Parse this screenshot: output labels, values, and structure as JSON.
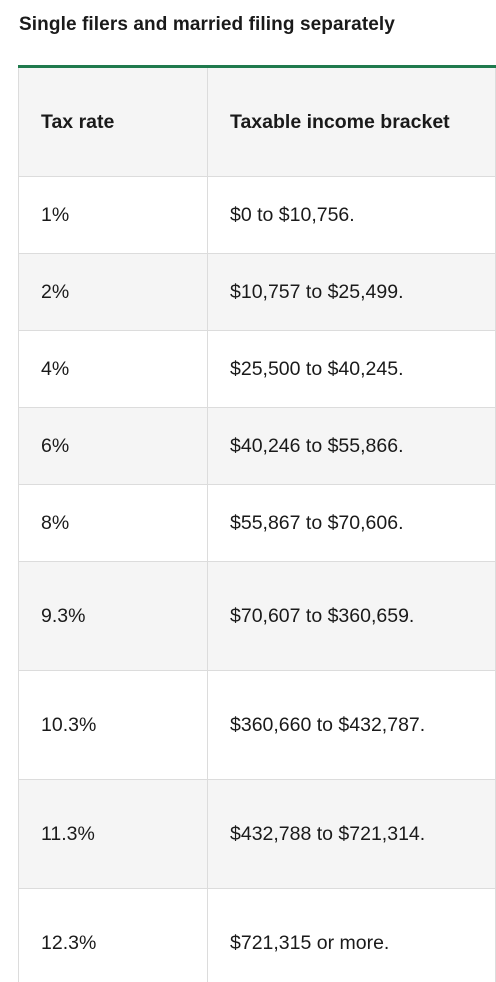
{
  "heading": "Single filers and married filing separately",
  "table": {
    "headers": [
      "Tax rate",
      "Taxable income bracket"
    ],
    "rows": [
      {
        "rate": "1%",
        "bracket": "$0 to $10,756."
      },
      {
        "rate": "2%",
        "bracket": "$10,757 to $25,499."
      },
      {
        "rate": "4%",
        "bracket": "$25,500 to $40,245."
      },
      {
        "rate": "6%",
        "bracket": "$40,246 to $55,866."
      },
      {
        "rate": "8%",
        "bracket": "$55,867 to $70,606."
      },
      {
        "rate": "9.3%",
        "bracket": "$70,607 to $360,659."
      },
      {
        "rate": "10.3%",
        "bracket": "$360,660 to $432,787."
      },
      {
        "rate": "11.3%",
        "bracket": "$432,788 to $721,314."
      },
      {
        "rate": "12.3%",
        "bracket": "$721,315 or more."
      }
    ]
  },
  "colors": {
    "accent_rule": "#1f7a4d",
    "row_shade": "#f5f5f5",
    "border": "#dcdcdc",
    "text": "#1a1a1a"
  }
}
